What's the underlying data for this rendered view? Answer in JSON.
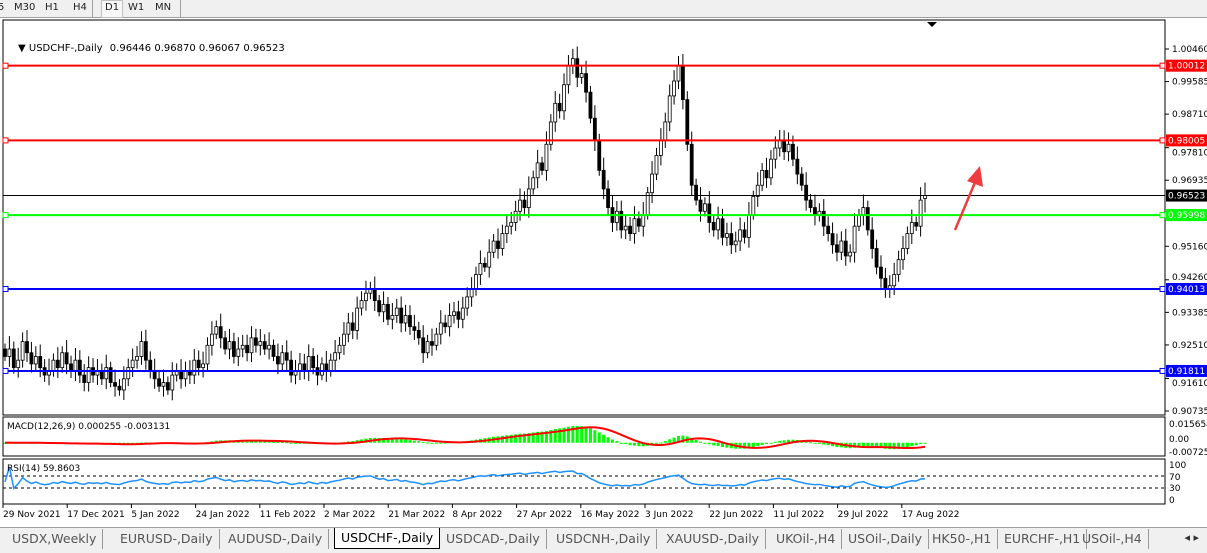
{
  "toolbar": {
    "timeframes": [
      "5",
      "M30",
      "H1",
      "H4",
      "D1",
      "W1",
      "MN"
    ],
    "active": "D1"
  },
  "header": {
    "symbol": "USDCHF-,Daily",
    "ohlc": "0.96446 0.96870 0.96067 0.96523"
  },
  "macd_label": "MACD(12,26,9) 0.000255 -0.003131",
  "rsi_label": "RSI(14) 59.8603",
  "tabs": [
    "USDX,Weekly",
    "EURUSD-,Daily",
    "AUDUSD-,Daily",
    "USDCHF-,Daily",
    "USDCAD-,Daily",
    "USDCNH-,Daily",
    "XAUUSD-,Daily",
    "UKOil-,H4",
    "USOil-,Daily",
    "HK50-,H1",
    "EURCHF-,H1",
    "USOil-,H4"
  ],
  "active_tab": "USDCHF-,Daily",
  "chart_data": {
    "type": "candlestick",
    "symbol": "USDCHF-",
    "timeframe": "Daily",
    "last_bar": {
      "open": 0.96446,
      "high": 0.9687,
      "low": 0.96067,
      "close": 0.96523
    },
    "x_tick_labels": [
      "29 Nov 2021",
      "17 Dec 2021",
      "5 Jan 2022",
      "24 Jan 2022",
      "11 Feb 2022",
      "2 Mar 2022",
      "21 Mar 2022",
      "8 Apr 2022",
      "27 Apr 2022",
      "16 May 2022",
      "3 Jun 2022",
      "22 Jun 2022",
      "11 Jul 2022",
      "29 Jul 2022",
      "17 Aug 2022"
    ],
    "y_ticks": [
      "1.00460",
      "0.99585",
      "0.98710",
      "0.97810",
      "0.96935",
      "0.95160",
      "0.94260",
      "0.93385",
      "0.92510",
      "0.91610",
      "0.90735"
    ],
    "ylim": [
      0.90735,
      1.0046
    ],
    "closes": [
      0.922,
      0.924,
      0.919,
      0.921,
      0.926,
      0.923,
      0.92,
      0.922,
      0.919,
      0.917,
      0.918,
      0.921,
      0.919,
      0.923,
      0.92,
      0.918,
      0.921,
      0.917,
      0.915,
      0.919,
      0.917,
      0.918,
      0.916,
      0.919,
      0.915,
      0.914,
      0.913,
      0.916,
      0.919,
      0.921,
      0.922,
      0.926,
      0.921,
      0.918,
      0.916,
      0.914,
      0.915,
      0.913,
      0.917,
      0.918,
      0.916,
      0.918,
      0.917,
      0.921,
      0.919,
      0.92,
      0.925,
      0.928,
      0.93,
      0.927,
      0.924,
      0.926,
      0.922,
      0.924,
      0.925,
      0.923,
      0.927,
      0.925,
      0.926,
      0.924,
      0.925,
      0.922,
      0.92,
      0.923,
      0.921,
      0.917,
      0.918,
      0.92,
      0.918,
      0.922,
      0.919,
      0.917,
      0.92,
      0.918,
      0.921,
      0.923,
      0.925,
      0.928,
      0.931,
      0.929,
      0.935,
      0.937,
      0.939,
      0.94,
      0.937,
      0.934,
      0.936,
      0.932,
      0.933,
      0.935,
      0.931,
      0.933,
      0.93,
      0.929,
      0.927,
      0.923,
      0.926,
      0.925,
      0.928,
      0.931,
      0.93,
      0.933,
      0.934,
      0.932,
      0.935,
      0.938,
      0.94,
      0.944,
      0.947,
      0.946,
      0.95,
      0.953,
      0.951,
      0.955,
      0.957,
      0.958,
      0.961,
      0.964,
      0.962,
      0.967,
      0.97,
      0.974,
      0.972,
      0.979,
      0.985,
      0.99,
      0.988,
      0.995,
      1.0,
      1.002,
      0.997,
      0.998,
      0.993,
      0.986,
      0.98,
      0.972,
      0.967,
      0.962,
      0.958,
      0.961,
      0.956,
      0.957,
      0.955,
      0.959,
      0.957,
      0.96,
      0.966,
      0.971,
      0.976,
      0.98,
      0.985,
      0.992,
      0.996,
      1.0,
      0.991,
      0.979,
      0.968,
      0.964,
      0.961,
      0.963,
      0.958,
      0.956,
      0.959,
      0.954,
      0.955,
      0.952,
      0.953,
      0.956,
      0.954,
      0.96,
      0.965,
      0.968,
      0.972,
      0.97,
      0.975,
      0.978,
      0.98,
      0.977,
      0.979,
      0.975,
      0.971,
      0.968,
      0.964,
      0.962,
      0.96,
      0.961,
      0.957,
      0.955,
      0.952,
      0.95,
      0.953,
      0.949,
      0.95,
      0.957,
      0.96,
      0.962,
      0.956,
      0.951,
      0.946,
      0.943,
      0.94,
      0.941,
      0.944,
      0.948,
      0.951,
      0.955,
      0.958,
      0.957,
      0.964,
      0.96523
    ],
    "horizontal_lines": [
      {
        "price": "1.00012",
        "color": "#ff0000"
      },
      {
        "price": "0.98005",
        "color": "#ff0000"
      },
      {
        "price": "0.96523",
        "color": "#000000",
        "current": true
      },
      {
        "price": "0.95998",
        "color": "#00ff00"
      },
      {
        "price": "0.94013",
        "color": "#0000ff"
      },
      {
        "price": "0.91811",
        "color": "#0000ff"
      }
    ],
    "annotation": {
      "type": "arrow",
      "color": "#f03c3c",
      "direction": "up"
    },
    "macd": {
      "params": "12,26,9",
      "axis_labels": [
        "0.015654",
        "0.00",
        "-0.007259"
      ],
      "hist_color": "#00ff00",
      "signal_color": "#ff0000"
    },
    "rsi": {
      "period": 14,
      "axis_labels": [
        "100",
        "70",
        "30",
        "0"
      ],
      "levels": [
        70,
        30
      ],
      "color": "#1e90ff"
    }
  }
}
